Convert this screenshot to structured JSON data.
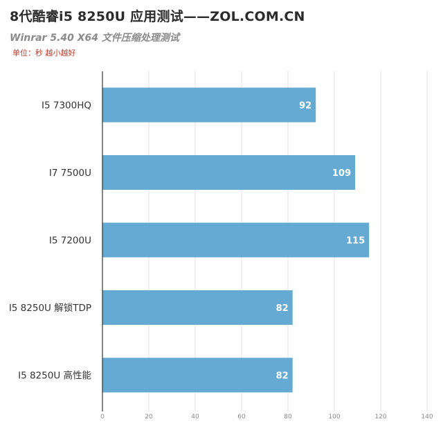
{
  "title": "8代酷睿i5 8250U 应用测试——ZOL.COM.CN",
  "subtitle": "Winrar 5.40 X64 文件压缩处理测试",
  "unit_note": "单位：秒 越小越好",
  "colors": {
    "bar": "#64aad2",
    "grid": "#e2e2e2",
    "axis": "#333333",
    "unit_note": "#c0392b"
  },
  "chart_data": {
    "type": "bar",
    "orientation": "horizontal",
    "categories": [
      "I5 7300HQ",
      "I7 7500U",
      "I5 7200U",
      "I5 8250U 解锁TDP",
      "I5 8250U 高性能"
    ],
    "values": [
      92,
      109,
      115,
      82,
      82
    ],
    "data_labels": [
      "92",
      "109",
      "115",
      "82",
      "82"
    ],
    "title": "8代酷睿i5 8250U 应用测试——ZOL.COM.CN",
    "subtitle": "Winrar 5.40 X64 文件压缩处理测试",
    "xlim": [
      0,
      140
    ],
    "xticks": [
      0,
      20,
      40,
      60,
      80,
      100,
      120,
      140
    ],
    "grid": true,
    "legend": "none"
  }
}
